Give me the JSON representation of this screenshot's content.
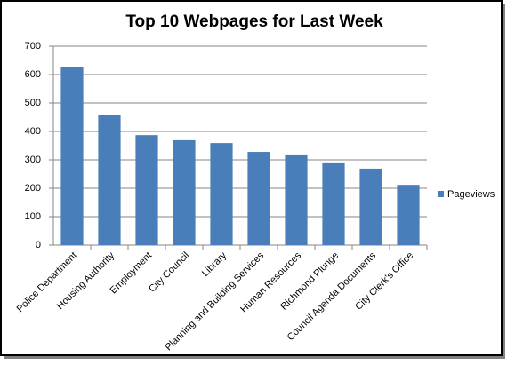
{
  "chart_data": {
    "type": "bar",
    "title": "Top 10 Webpages for Last Week",
    "categories": [
      "Police Department",
      "Housing Authority",
      "Employment",
      "City Council",
      "Library",
      "Planning and Building Services",
      "Human Resources",
      "Richmond Plunge",
      "Council Agenda Documents",
      "City Clerk's Office"
    ],
    "series": [
      {
        "name": "Pageviews",
        "color": "#4a7ebb",
        "values": [
          625,
          459,
          387,
          369,
          359,
          328,
          319,
          291,
          269,
          212
        ]
      }
    ],
    "ylim": [
      0,
      700
    ],
    "yticks": [
      0,
      100,
      200,
      300,
      400,
      500,
      600,
      700
    ],
    "grid": true,
    "legend": "right"
  }
}
